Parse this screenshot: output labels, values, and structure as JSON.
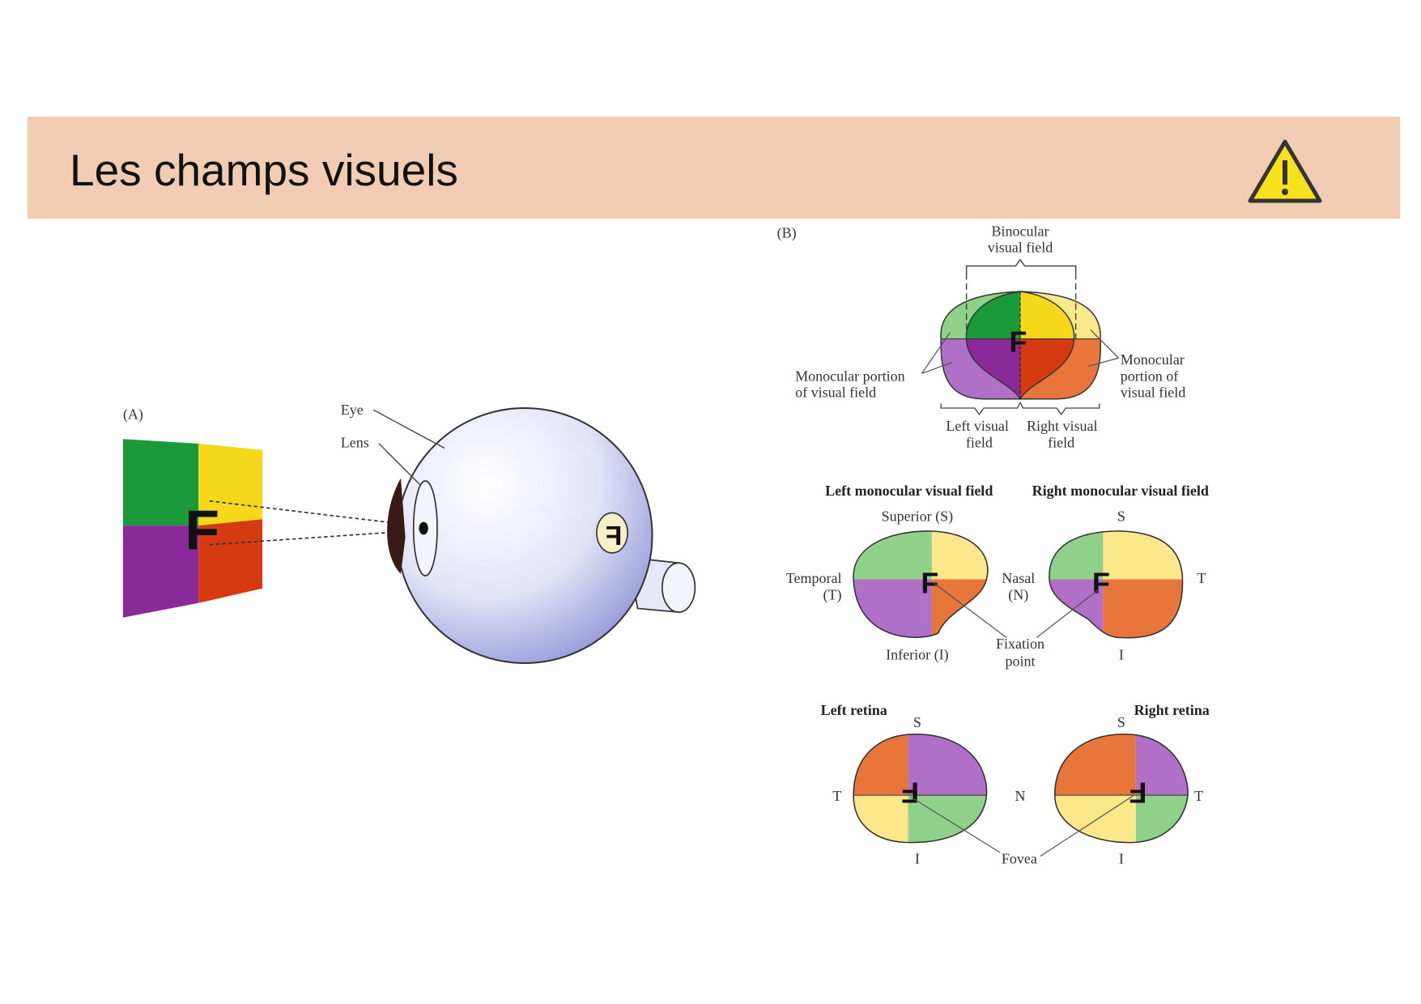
{
  "slide": {
    "title": "Les champs visuels",
    "icon": "warning-icon"
  },
  "panel_a": {
    "label": "(A)",
    "eye": "Eye",
    "lens": "Lens",
    "letter": "F"
  },
  "panel_b": {
    "label": "(B)",
    "binocular": [
      "Binocular",
      "visual field"
    ],
    "monocular_left": [
      "Monocular portion",
      "of visual field"
    ],
    "monocular_right": [
      "Monocular",
      "portion of",
      "visual field"
    ],
    "left_field": [
      "Left visual",
      "field"
    ],
    "right_field": [
      "Right visual",
      "field"
    ],
    "left_mono_title": "Left monocular visual field",
    "right_mono_title": "Right monocular visual field",
    "superior": "Superior (S)",
    "inferior": "Inferior (I)",
    "temporal": [
      "Temporal",
      "(T)"
    ],
    "nasal": [
      "Nasal",
      "(N)"
    ],
    "fixation": [
      "Fixation",
      "point"
    ],
    "s": "S",
    "i": "I",
    "t": "T",
    "n": "N",
    "left_retina": "Left retina",
    "right_retina": "Right retina",
    "fovea": "Fovea",
    "letter": "F"
  },
  "colors": {
    "green": "#1a9a3a",
    "yellow": "#f6d81a",
    "purple": "#8a2a9a",
    "red": "#d63a10",
    "lgreen": "#8fd08a",
    "lyellow": "#fbe88a",
    "lpurple": "#b070c8",
    "orange": "#e8753a",
    "band": "#f0cdb2"
  }
}
